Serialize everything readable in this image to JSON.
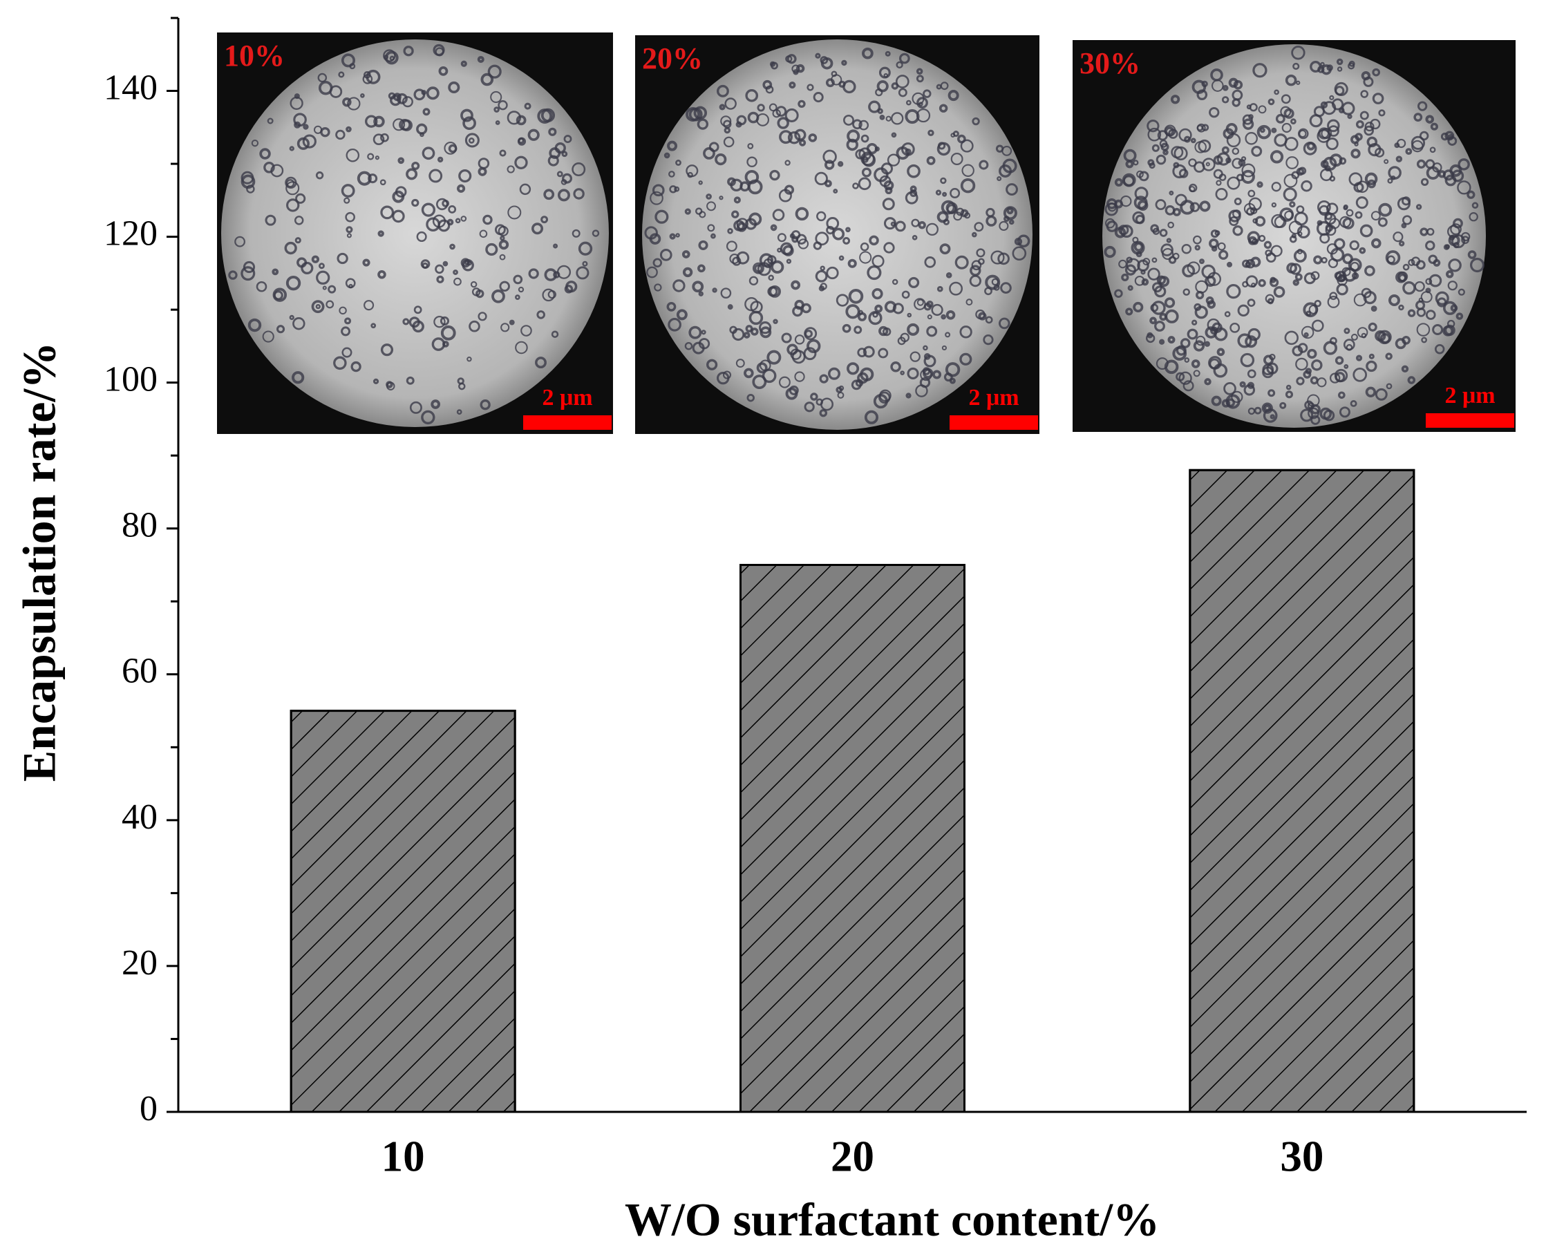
{
  "chart_data": {
    "type": "bar",
    "xlabel": "W/O surfactant content/%",
    "ylabel": "Encapsulation rate/%",
    "categories": [
      "10",
      "20",
      "30"
    ],
    "values": [
      55,
      75,
      88
    ],
    "color": "#808080",
    "hatch": "diagonal",
    "ylim": [
      0,
      150
    ],
    "yticks": [
      0,
      20,
      40,
      60,
      80,
      100,
      120,
      140
    ],
    "minor_yticks": [
      10,
      30,
      50,
      70,
      90,
      110,
      130,
      150
    ],
    "insets": [
      {
        "label": "10%",
        "scale": "2 μm"
      },
      {
        "label": "20%",
        "scale": "2 μm"
      },
      {
        "label": "30%",
        "scale": "2 μm"
      }
    ]
  }
}
